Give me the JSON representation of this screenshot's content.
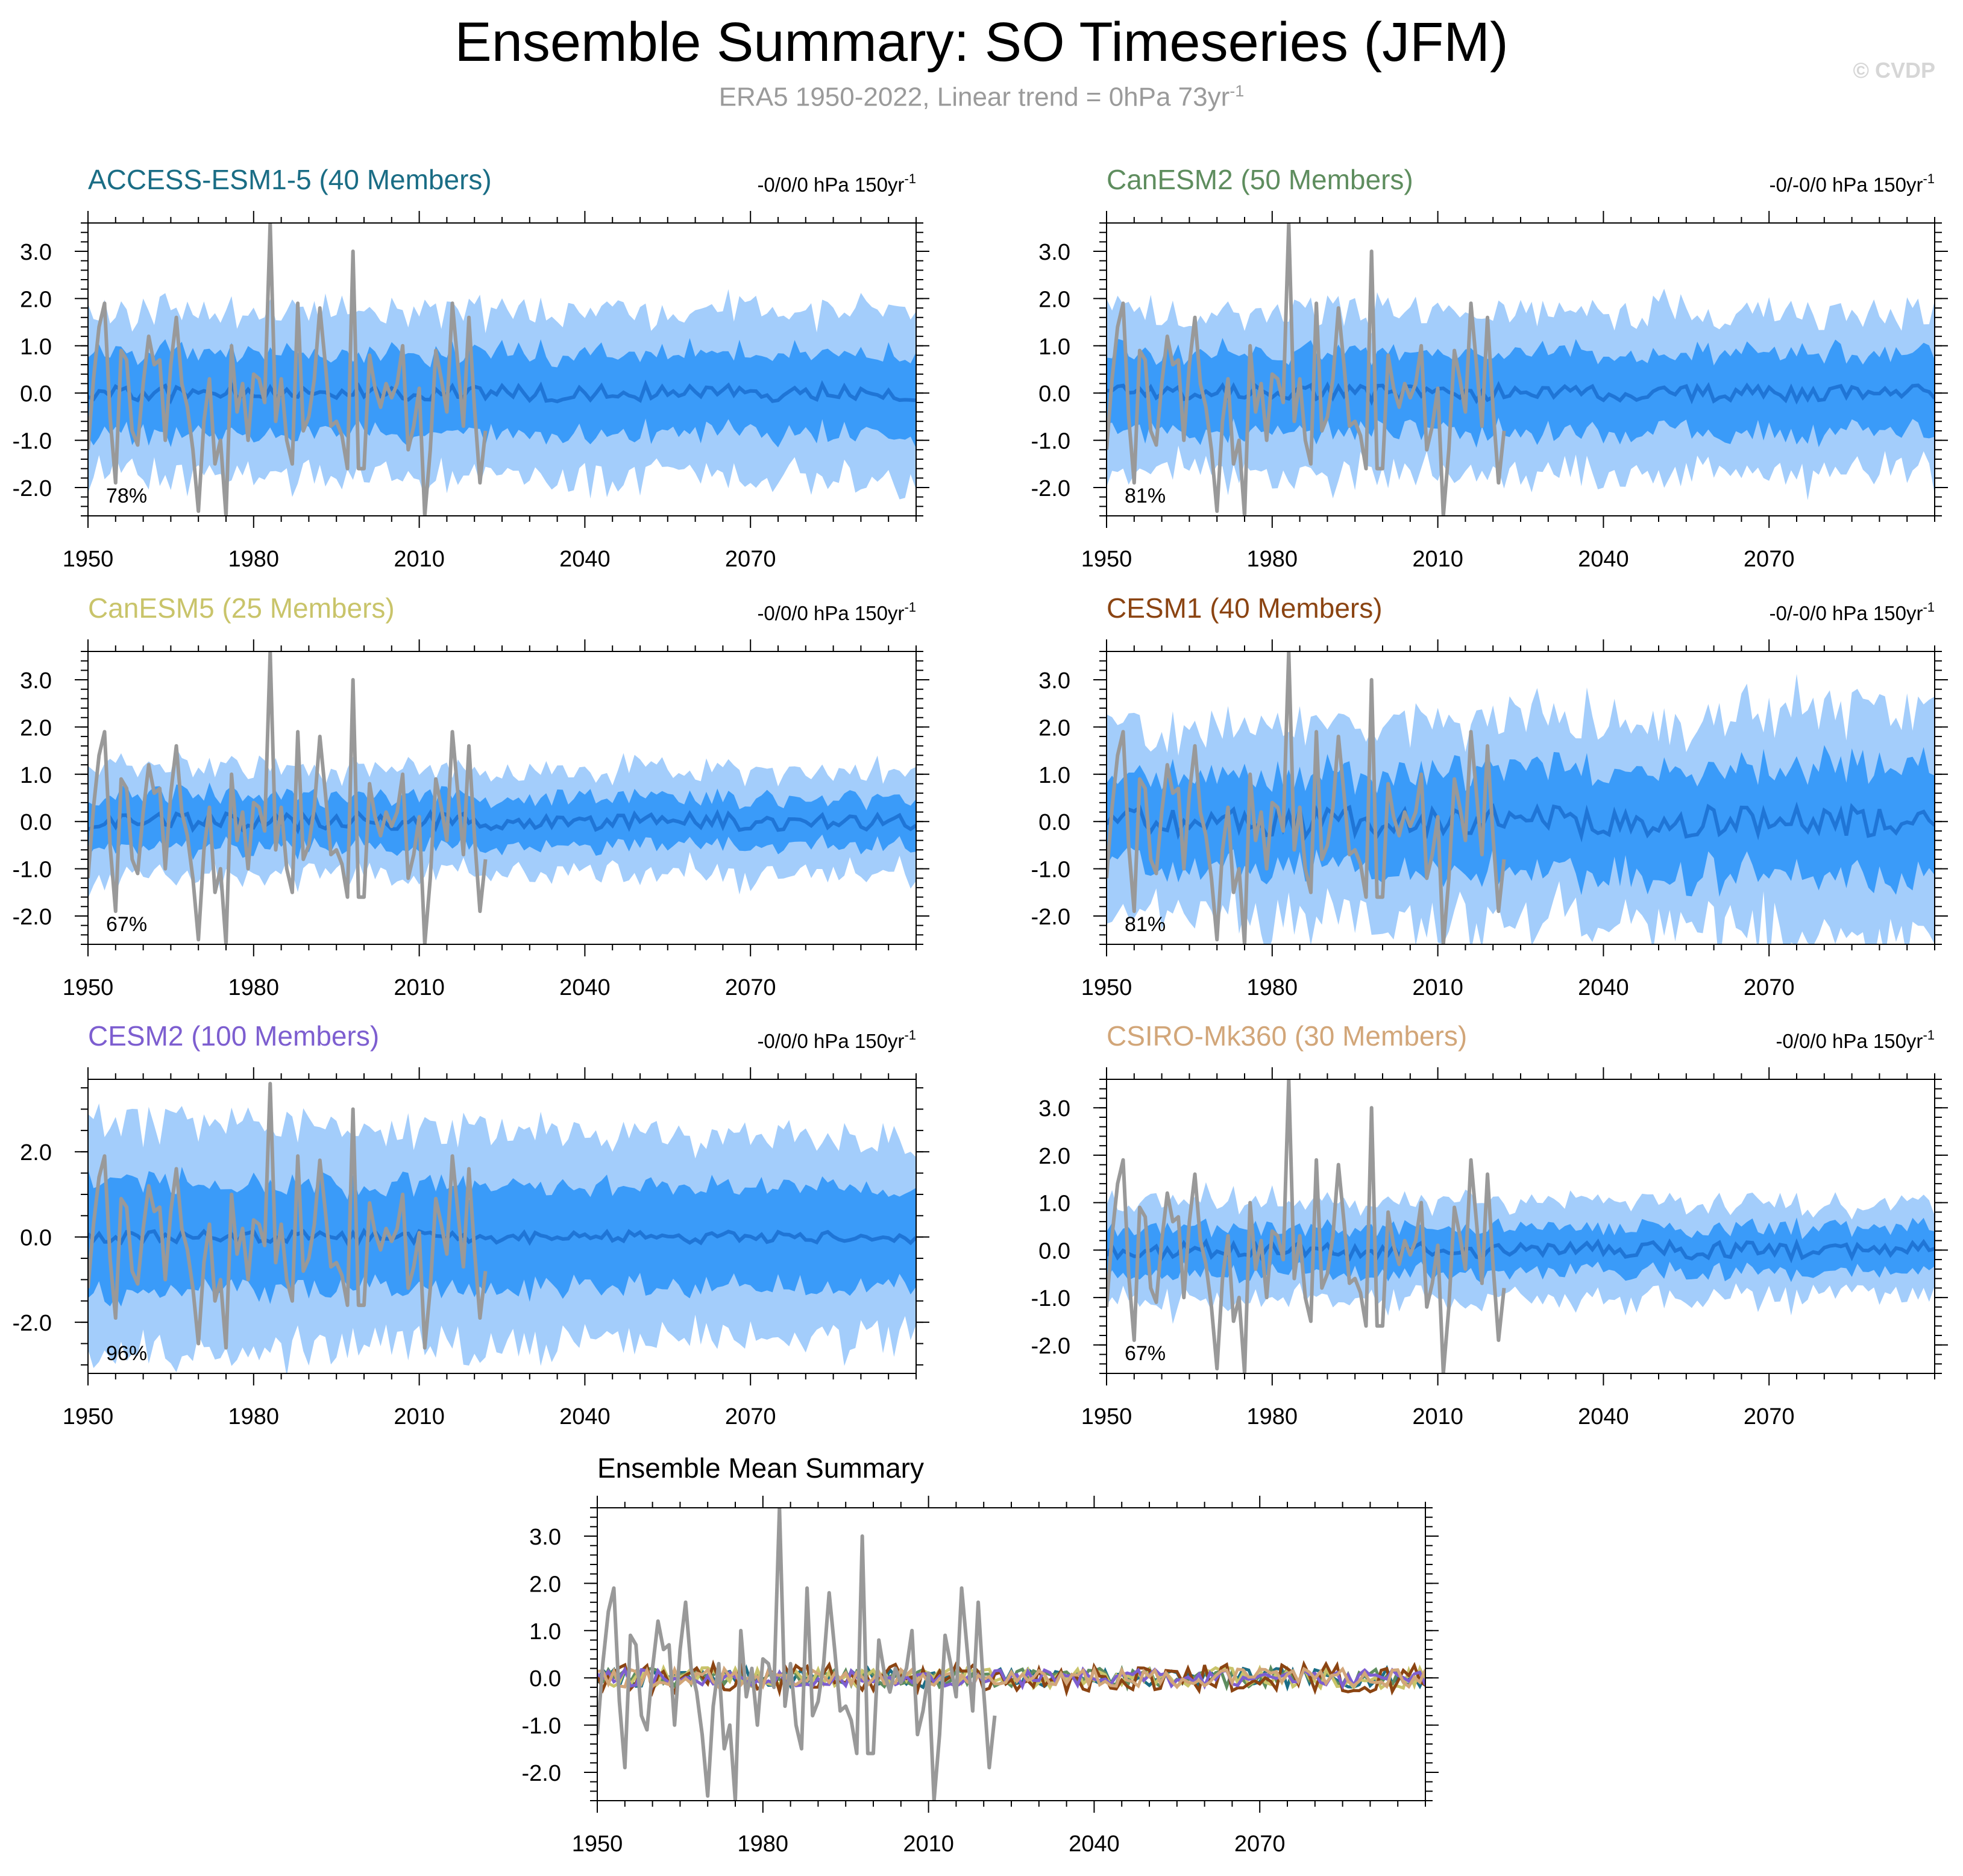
{
  "header": {
    "title": "Ensemble Summary: SO Timeseries (JFM)",
    "subtitle_main": "ERA5 1950-2022, Linear trend = 0hPa 73yr",
    "subtitle_sup": "-1",
    "watermark": "© CVDP"
  },
  "colors": {
    "outer_band": "#a3cdfb",
    "inner_band": "#3a9bf9",
    "ensemble_mean": "#1f75d6",
    "observations": "#999999",
    "background": "#ffffff"
  },
  "chart_data": [
    {
      "type": "line",
      "title": "ACCESS-ESM1-5 (40 Members)",
      "title_color": "#1a6d85",
      "trend_label": "-0/0/0 hPa 150yr",
      "trend_sup": "-1",
      "percent_label": "78%",
      "xlim": [
        1950,
        2100
      ],
      "ylim": [
        -2.6,
        3.6
      ],
      "x_ticks": [
        1950,
        1980,
        2010,
        2040,
        2070
      ],
      "y_ticks": [
        3.0,
        2.0,
        1.0,
        0.0,
        -1.0,
        -2.0
      ],
      "y_tick_labels": [
        "3.0",
        "2.0",
        "1.0",
        "0.0",
        "-1.0",
        "-2.0"
      ],
      "mean_amp": 0.18,
      "inner_half_width": 0.85,
      "outer_half_width": 1.75,
      "outer_var": 0.3,
      "end_spread": 1.0,
      "series": [
        {
          "role": "outer-band",
          "x_range": [
            1950,
            2100
          ],
          "lower": -1.75,
          "upper": 1.75
        },
        {
          "role": "inner-band",
          "x_range": [
            1950,
            2100
          ],
          "lower": -0.85,
          "upper": 0.85
        },
        {
          "role": "ensemble-mean",
          "x_range": [
            1950,
            2100
          ]
        },
        {
          "role": "observations",
          "x_range": [
            1950,
            2022
          ]
        }
      ]
    },
    {
      "type": "line",
      "title": "CanESM2 (50 Members)",
      "title_color": "#5e8d5e",
      "trend_label": "-0/-0/0 hPa 150yr",
      "trend_sup": "-1",
      "percent_label": "81%",
      "xlim": [
        1950,
        2100
      ],
      "ylim": [
        -2.6,
        3.6
      ],
      "x_ticks": [
        1950,
        1980,
        2010,
        2040,
        2070
      ],
      "y_ticks": [
        3.0,
        2.0,
        1.0,
        0.0,
        -1.0,
        -2.0
      ],
      "y_tick_labels": [
        "3.0",
        "2.0",
        "1.0",
        "0.0",
        "-1.0",
        "-2.0"
      ],
      "mean_amp": 0.17,
      "inner_half_width": 0.85,
      "outer_half_width": 1.7,
      "outer_var": 0.3,
      "end_spread": 1.0,
      "series": [
        {
          "role": "outer-band",
          "x_range": [
            1950,
            2100
          ],
          "lower": -1.7,
          "upper": 1.7
        },
        {
          "role": "inner-band",
          "x_range": [
            1950,
            2100
          ],
          "lower": -0.85,
          "upper": 0.85
        },
        {
          "role": "ensemble-mean",
          "x_range": [
            1950,
            2100
          ]
        },
        {
          "role": "observations",
          "x_range": [
            1950,
            2022
          ]
        }
      ]
    },
    {
      "type": "line",
      "title": "CanESM5 (25 Members)",
      "title_color": "#c9c46a",
      "trend_label": "-0/0/0 hPa 150yr",
      "trend_sup": "-1",
      "percent_label": "67%",
      "xlim": [
        1950,
        2100
      ],
      "ylim": [
        -2.6,
        3.6
      ],
      "x_ticks": [
        1950,
        1980,
        2010,
        2040,
        2070
      ],
      "y_ticks": [
        3.0,
        2.0,
        1.0,
        0.0,
        -1.0,
        -2.0
      ],
      "y_tick_labels": [
        "3.0",
        "2.0",
        "1.0",
        "0.0",
        "-1.0",
        "-2.0"
      ],
      "mean_amp": 0.18,
      "inner_half_width": 0.55,
      "outer_half_width": 1.15,
      "outer_var": 0.25,
      "end_spread": 0.9,
      "series": [
        {
          "role": "outer-band",
          "x_range": [
            1950,
            2100
          ],
          "lower": -1.15,
          "upper": 1.15
        },
        {
          "role": "inner-band",
          "x_range": [
            1950,
            2100
          ],
          "lower": -0.55,
          "upper": 0.55
        },
        {
          "role": "ensemble-mean",
          "x_range": [
            1950,
            2100
          ]
        },
        {
          "role": "observations",
          "x_range": [
            1950,
            2022
          ]
        }
      ]
    },
    {
      "type": "line",
      "title": "CESM1 (40 Members)",
      "title_color": "#8b4412",
      "trend_label": "-0/-0/0 hPa 150yr",
      "trend_sup": "-1",
      "percent_label": "81%",
      "xlim": [
        1950,
        2100
      ],
      "ylim": [
        -2.6,
        3.6
      ],
      "x_ticks": [
        1950,
        1980,
        2010,
        2040,
        2070
      ],
      "y_ticks": [
        3.0,
        2.0,
        1.0,
        0.0,
        -1.0,
        -2.0
      ],
      "y_tick_labels": [
        "3.0",
        "2.0",
        "1.0",
        "0.0",
        "-1.0",
        "-2.0"
      ],
      "mean_amp": 0.32,
      "inner_half_width": 0.95,
      "outer_half_width": 1.9,
      "outer_var": 0.55,
      "end_spread": 1.25,
      "series": [
        {
          "role": "outer-band",
          "x_range": [
            1950,
            2100
          ],
          "lower": -1.9,
          "upper": 1.9
        },
        {
          "role": "inner-band",
          "x_range": [
            1950,
            2100
          ],
          "lower": -0.95,
          "upper": 0.95
        },
        {
          "role": "ensemble-mean",
          "x_range": [
            1950,
            2100
          ]
        },
        {
          "role": "observations",
          "x_range": [
            1950,
            2022
          ]
        }
      ]
    },
    {
      "type": "line",
      "title": "CESM2 (100 Members)",
      "title_color": "#7d5ed0",
      "trend_label": "-0/0/0 hPa 150yr",
      "trend_sup": "-1",
      "percent_label": "96%",
      "xlim": [
        1950,
        2100
      ],
      "ylim": [
        -3.2,
        3.7
      ],
      "x_ticks": [
        1950,
        1980,
        2010,
        2040,
        2070
      ],
      "y_ticks": [
        2.0,
        0.0,
        -2.0
      ],
      "y_tick_labels": [
        "2.0",
        "0.0",
        "-2.0"
      ],
      "mean_amp": 0.14,
      "inner_half_width": 1.3,
      "outer_half_width": 2.7,
      "outer_var": 0.35,
      "end_spread": 0.85,
      "series": [
        {
          "role": "outer-band",
          "x_range": [
            1950,
            2100
          ],
          "lower": -2.7,
          "upper": 2.7
        },
        {
          "role": "inner-band",
          "x_range": [
            1950,
            2100
          ],
          "lower": -1.3,
          "upper": 1.3
        },
        {
          "role": "ensemble-mean",
          "x_range": [
            1950,
            2100
          ]
        },
        {
          "role": "observations",
          "x_range": [
            1950,
            2022
          ]
        }
      ]
    },
    {
      "type": "line",
      "title": "CSIRO-Mk360 (30 Members)",
      "title_color": "#d2a679",
      "trend_label": "-0/0/0 hPa 150yr",
      "trend_sup": "-1",
      "percent_label": "67%",
      "xlim": [
        1950,
        2100
      ],
      "ylim": [
        -2.6,
        3.6
      ],
      "x_ticks": [
        1950,
        1980,
        2010,
        2040,
        2070
      ],
      "y_ticks": [
        3.0,
        2.0,
        1.0,
        0.0,
        -1.0,
        -2.0
      ],
      "y_tick_labels": [
        "3.0",
        "2.0",
        "1.0",
        "0.0",
        "-1.0",
        "-2.0"
      ],
      "mean_amp": 0.18,
      "inner_half_width": 0.5,
      "outer_half_width": 1.05,
      "outer_var": 0.25,
      "end_spread": 0.9,
      "series": [
        {
          "role": "outer-band",
          "x_range": [
            1950,
            2100
          ],
          "lower": -1.05,
          "upper": 1.05
        },
        {
          "role": "inner-band",
          "x_range": [
            1950,
            2100
          ],
          "lower": -0.5,
          "upper": 0.5
        },
        {
          "role": "ensemble-mean",
          "x_range": [
            1950,
            2100
          ]
        },
        {
          "role": "observations",
          "x_range": [
            1950,
            2022
          ]
        }
      ]
    },
    {
      "type": "line",
      "title": "Ensemble Mean Summary",
      "title_color": "#000000",
      "xlim": [
        1950,
        2100
      ],
      "ylim": [
        -2.6,
        3.6
      ],
      "x_ticks": [
        1950,
        1980,
        2010,
        2040,
        2070
      ],
      "y_ticks": [
        3.0,
        2.0,
        1.0,
        0.0,
        -1.0,
        -2.0
      ],
      "y_tick_labels": [
        "3.0",
        "2.0",
        "1.0",
        "0.0",
        "-1.0",
        "-2.0"
      ],
      "series": [
        {
          "name": "ACCESS-ESM1-5",
          "color": "#1a6d85",
          "amp": 0.2
        },
        {
          "name": "CanESM2",
          "color": "#5e8d5e",
          "amp": 0.2
        },
        {
          "name": "CanESM5",
          "color": "#c9c46a",
          "amp": 0.22
        },
        {
          "name": "CESM1",
          "color": "#8b4412",
          "amp": 0.3
        },
        {
          "name": "CESM2",
          "color": "#7d5ed0",
          "amp": 0.18
        },
        {
          "name": "CSIRO-Mk360",
          "color": "#d2a679",
          "amp": 0.2
        },
        {
          "name": "observations",
          "color": "#999999",
          "x_range": [
            1950,
            2022
          ]
        }
      ]
    }
  ],
  "observations": {
    "x_range": [
      1950,
      2022
    ],
    "values": [
      -1.2,
      0.3,
      1.4,
      1.9,
      -0.5,
      -1.9,
      0.9,
      0.7,
      -0.8,
      -1.1,
      0.2,
      1.2,
      0.6,
      0.7,
      -1.0,
      0.6,
      1.6,
      0.2,
      -0.3,
      -1.2,
      -2.5,
      -0.6,
      0.3,
      -1.5,
      -1.0,
      -2.6,
      1.0,
      -0.4,
      0.2,
      -1.0,
      0.4,
      0.3,
      -0.2,
      3.6,
      -0.6,
      0.3,
      -1.0,
      -1.5,
      1.9,
      -0.8,
      -0.5,
      0.3,
      1.8,
      0.6,
      -0.7,
      -0.6,
      -0.9,
      -1.6,
      3.0,
      -1.6,
      -1.6,
      0.8,
      0.1,
      -0.3,
      0.2,
      -0.1,
      0.2,
      1.0,
      -1.2,
      -0.7,
      0.1,
      -2.6,
      -1.2,
      0.9,
      0.3,
      -0.4,
      1.9,
      0.6,
      -0.7,
      1.6,
      -0.3,
      -1.9,
      -0.8
    ]
  }
}
